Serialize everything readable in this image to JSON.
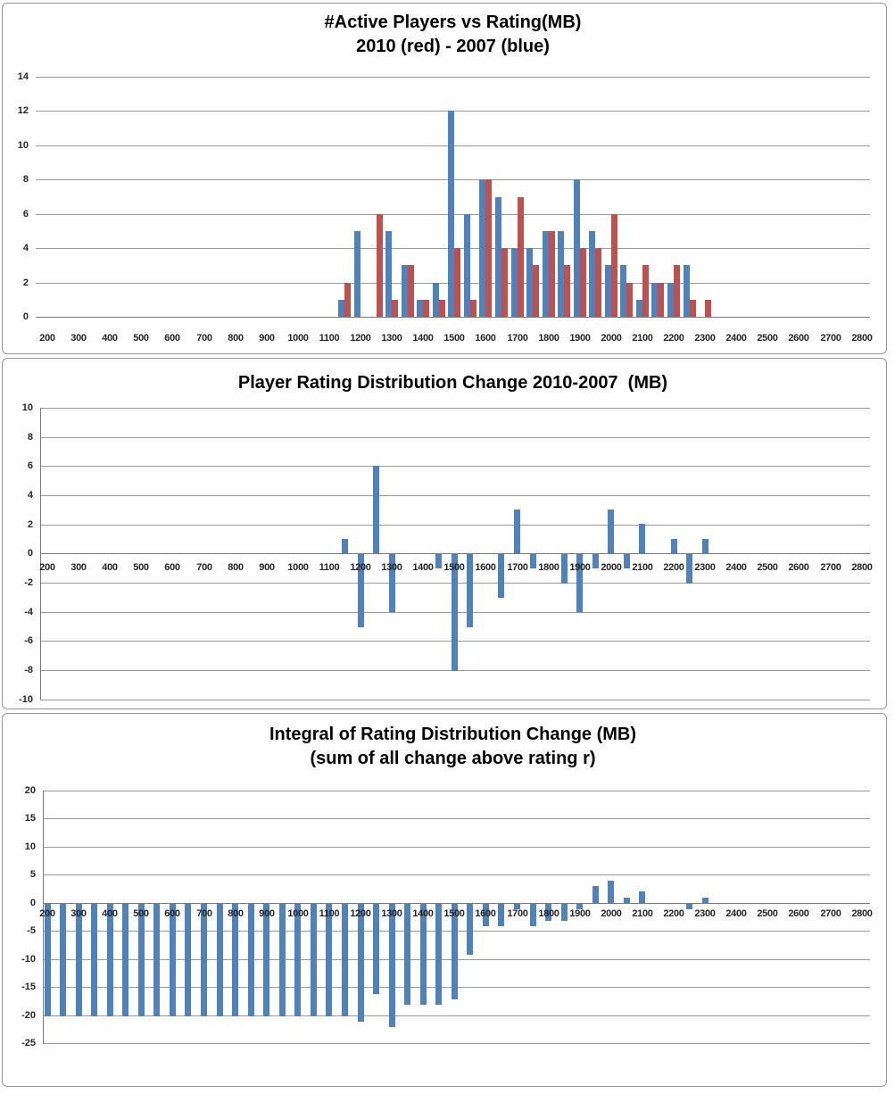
{
  "colors": {
    "series_2007_blue": "#4F81BD",
    "series_2010_red": "#C0504D",
    "gridline": "#9a9a9a",
    "axis_line": "#7a7a7a",
    "tick_text": "#262626",
    "title_text": "#000000",
    "panel_border": "#979797",
    "background": "#ffffff"
  },
  "chart_data": [
    {
      "type": "bar",
      "title": "#Active Players vs Rating(MB)",
      "subtitle": "2010 (red) - 2007 (blue)",
      "xlabel": "",
      "ylabel": "",
      "ylim": [
        0,
        14
      ],
      "y_ticks": [
        14,
        12,
        10,
        8,
        6,
        4,
        2,
        0
      ],
      "x_tick_labels": [
        200,
        300,
        400,
        500,
        600,
        700,
        800,
        900,
        1000,
        1100,
        1200,
        1300,
        1400,
        1500,
        1600,
        1700,
        1800,
        1900,
        2000,
        2100,
        2200,
        2300,
        2400,
        2500,
        2600,
        2700,
        2800
      ],
      "grid": true,
      "legend_position": "none",
      "x": [
        1150,
        1200,
        1250,
        1300,
        1350,
        1400,
        1450,
        1500,
        1550,
        1600,
        1650,
        1700,
        1750,
        1800,
        1850,
        1900,
        1950,
        2000,
        2050,
        2100,
        2150,
        2200,
        2250,
        2300
      ],
      "series": [
        {
          "name": "2007",
          "color": "#4F81BD",
          "values": [
            1,
            5,
            0,
            5,
            3,
            1,
            2,
            12,
            6,
            8,
            7,
            4,
            4,
            5,
            5,
            8,
            5,
            3,
            3,
            1,
            2,
            2,
            3,
            0
          ]
        },
        {
          "name": "2010",
          "color": "#C0504D",
          "values": [
            2,
            0,
            6,
            1,
            3,
            1,
            1,
            4,
            1,
            8,
            4,
            7,
            3,
            5,
            3,
            4,
            4,
            6,
            2,
            3,
            2,
            3,
            1,
            1
          ]
        }
      ]
    },
    {
      "type": "bar",
      "title": "Player Rating Distribution Change 2010-2007  (MB)",
      "xlabel": "",
      "ylabel": "",
      "ylim": [
        -10,
        10
      ],
      "y_ticks": [
        10,
        8,
        6,
        4,
        2,
        0,
        -2,
        -4,
        -6,
        -8,
        -10
      ],
      "x_tick_labels": [
        200,
        300,
        400,
        500,
        600,
        700,
        800,
        900,
        1000,
        1100,
        1200,
        1300,
        1400,
        1500,
        1600,
        1700,
        1800,
        1900,
        2000,
        2100,
        2200,
        2300,
        2400,
        2500,
        2600,
        2700,
        2800
      ],
      "grid": true,
      "legend_position": "none",
      "x": [
        1150,
        1200,
        1250,
        1300,
        1350,
        1400,
        1450,
        1500,
        1550,
        1600,
        1650,
        1700,
        1750,
        1800,
        1850,
        1900,
        1950,
        2000,
        2050,
        2100,
        2150,
        2200,
        2250,
        2300
      ],
      "series": [
        {
          "name": "change",
          "color": "#4F81BD",
          "values": [
            1,
            -5,
            6,
            -4,
            0,
            0,
            -1,
            -8,
            -5,
            0,
            -3,
            3,
            -1,
            0,
            -2,
            -4,
            -1,
            3,
            -1,
            2,
            0,
            1,
            -2,
            1
          ]
        }
      ]
    },
    {
      "type": "bar",
      "title": "Integral of Rating Distribution Change (MB)",
      "subtitle": "(sum of all change above rating r)",
      "xlabel": "",
      "ylabel": "",
      "ylim": [
        -25,
        20
      ],
      "y_ticks": [
        20,
        15,
        10,
        5,
        0,
        -5,
        -10,
        -15,
        -20,
        -25
      ],
      "x_tick_labels": [
        200,
        300,
        400,
        500,
        600,
        700,
        800,
        900,
        1000,
        1100,
        1200,
        1300,
        1400,
        1500,
        1600,
        1700,
        1800,
        1900,
        2000,
        2100,
        2200,
        2300,
        2400,
        2500,
        2600,
        2700,
        2800
      ],
      "grid": true,
      "legend_position": "none",
      "x": [
        200,
        250,
        300,
        350,
        400,
        450,
        500,
        550,
        600,
        650,
        700,
        750,
        800,
        850,
        900,
        950,
        1000,
        1050,
        1100,
        1150,
        1200,
        1250,
        1300,
        1350,
        1400,
        1450,
        1500,
        1550,
        1600,
        1650,
        1700,
        1750,
        1800,
        1850,
        1900,
        1950,
        2000,
        2050,
        2100,
        2150,
        2200,
        2250,
        2300
      ],
      "series": [
        {
          "name": "integral",
          "color": "#4F81BD",
          "values": [
            -20,
            -20,
            -20,
            -20,
            -20,
            -20,
            -20,
            -20,
            -20,
            -20,
            -20,
            -20,
            -20,
            -20,
            -20,
            -20,
            -20,
            -20,
            -20,
            -20,
            -21,
            -16,
            -22,
            -18,
            -18,
            -18,
            -17,
            -9,
            -4,
            -4,
            -1,
            -4,
            -3,
            -3,
            -1,
            3,
            4,
            1,
            2,
            0,
            0,
            -1,
            1
          ]
        }
      ]
    }
  ]
}
